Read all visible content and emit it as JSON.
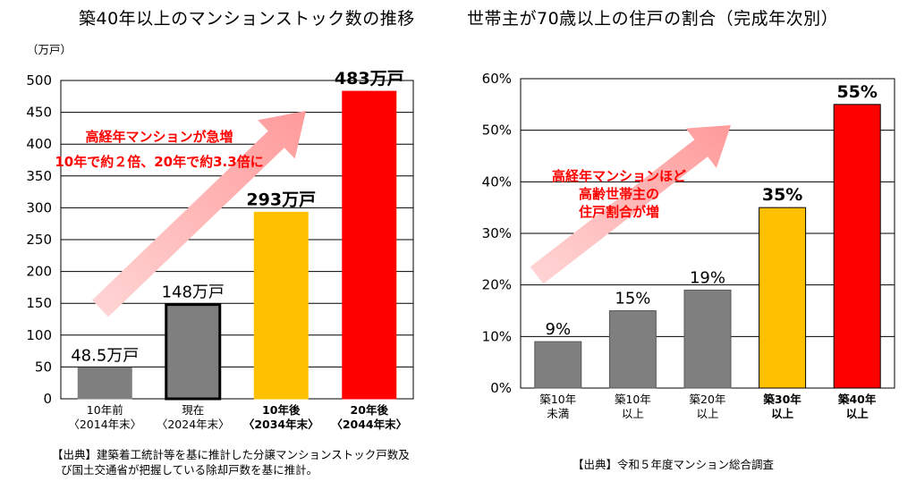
{
  "chart_data": [
    {
      "type": "bar",
      "title": "築40年以上のマンションストック数の推移",
      "unit_label": "（万戸）",
      "categories": [
        {
          "line1": "10年前",
          "line2": "〈2014年末〉",
          "bold": false
        },
        {
          "line1": "現在",
          "line2": "〈2024年末〉",
          "bold": false
        },
        {
          "line1": "10年後",
          "line2": "〈2034年末〉",
          "bold": true
        },
        {
          "line1": "20年後",
          "line2": "〈2044年末〉",
          "bold": true
        }
      ],
      "values": [
        48.5,
        148,
        293,
        483
      ],
      "data_labels": [
        "48.5万戸",
        "148万戸",
        "293万戸",
        "483万戸"
      ],
      "bar_colors": [
        "#7f7f7f",
        "#7f7f7f",
        "#ffc000",
        "#ff0000"
      ],
      "ylim": [
        0,
        500
      ],
      "yticks": [
        0,
        50,
        100,
        150,
        200,
        250,
        300,
        350,
        400,
        450,
        500
      ],
      "grid": true,
      "annotation": [
        "高経年マンションが急増",
        "10年で約２倍、20年で約3.3倍に"
      ],
      "annotation_color": "#ff0000",
      "source": [
        "【出典】建築着工統計等を基に推計した分譲マンションストック戸数及",
        "び国土交通省が把握している除却戸数を基に推計。"
      ]
    },
    {
      "type": "bar",
      "title": "世帯主が70歳以上の住戸の割合（完成年次別）",
      "categories": [
        {
          "line1": "築10年",
          "line2": "未満",
          "bold": false
        },
        {
          "line1": "築10年",
          "line2": "以上",
          "bold": false
        },
        {
          "line1": "築20年",
          "line2": "以上",
          "bold": false
        },
        {
          "line1": "築30年",
          "line2": "以上",
          "bold": true
        },
        {
          "line1": "築40年",
          "line2": "以上",
          "bold": true
        }
      ],
      "values": [
        9,
        15,
        19,
        35,
        55
      ],
      "data_labels": [
        "9%",
        "15%",
        "19%",
        "35%",
        "55%"
      ],
      "bar_colors": [
        "#7f7f7f",
        "#7f7f7f",
        "#7f7f7f",
        "#ffc000",
        "#ff0000"
      ],
      "ylim": [
        0,
        60
      ],
      "yticks": [
        0,
        10,
        20,
        30,
        40,
        50,
        60
      ],
      "ytick_labels": [
        "0%",
        "10%",
        "20%",
        "30%",
        "40%",
        "50%",
        "60%"
      ],
      "grid": true,
      "annotation": [
        "高経年マンションほど",
        "高齢世帯主の",
        "住戸割合が増"
      ],
      "annotation_color": "#ff0000",
      "source": [
        "【出典】令和５年度マンション総合調査"
      ]
    }
  ]
}
